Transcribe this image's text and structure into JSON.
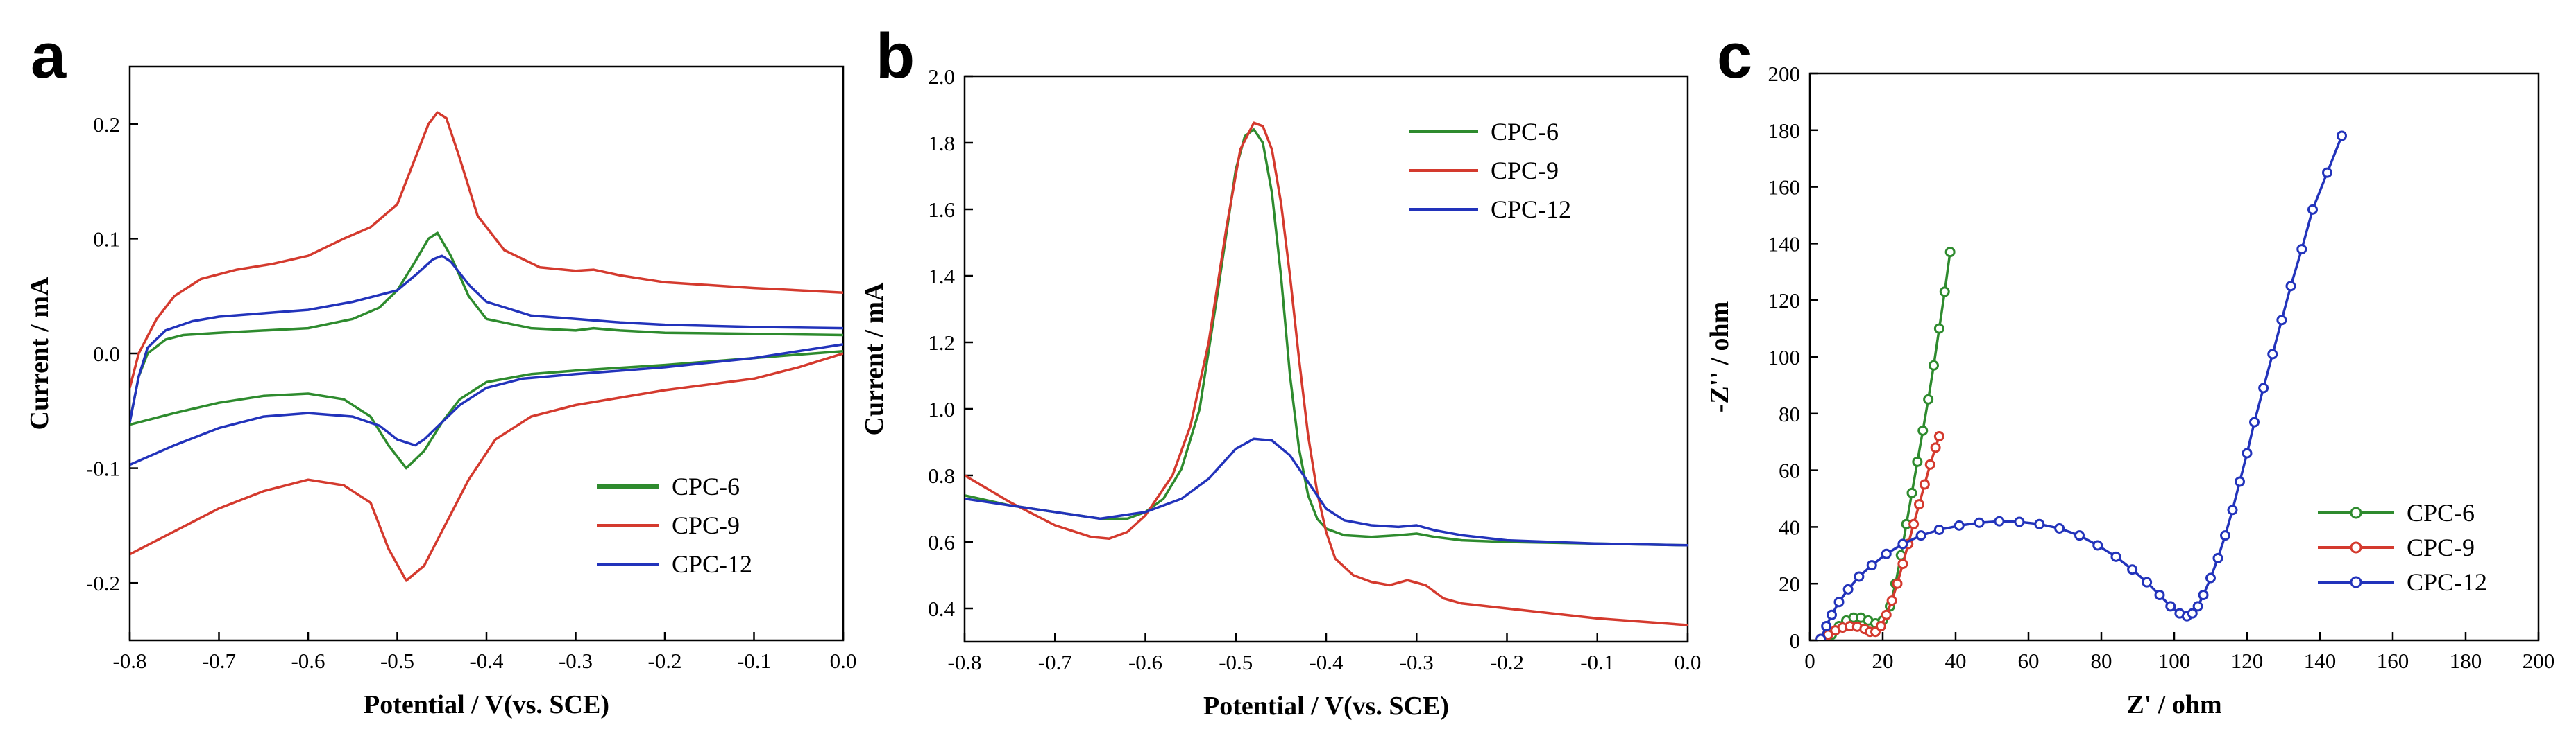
{
  "chart_data": [
    {
      "panel_label": "a",
      "type": "line",
      "title": "",
      "xlabel": "Potential / V(vs. SCE)",
      "ylabel": "Current / mA",
      "xlim": [
        -0.8,
        0.0
      ],
      "ylim": [
        -0.25,
        0.25
      ],
      "xticks": [
        -0.8,
        -0.7,
        -0.6,
        -0.5,
        -0.4,
        -0.3,
        -0.2,
        -0.1,
        0.0
      ],
      "xtick_labels": [
        "-0.8",
        "-0.7",
        "-0.6",
        "-0.5",
        "-0.4",
        "-0.3",
        "-0.2",
        "-0.1",
        "0.0"
      ],
      "yticks": [
        -0.2,
        -0.1,
        0.0,
        0.1,
        0.2
      ],
      "ytick_labels": [
        "-0.2",
        "-0.1",
        "0.0",
        "0.1",
        "0.2"
      ],
      "legend_position": "bottom-right",
      "series": [
        {
          "name": "CPC-6",
          "color": "#2e8b2e",
          "forward": {
            "x": [
              -0.8,
              -0.79,
              -0.78,
              -0.76,
              -0.74,
              -0.7,
              -0.65,
              -0.6,
              -0.55,
              -0.52,
              -0.5,
              -0.48,
              -0.465,
              -0.455,
              -0.44,
              -0.42,
              -0.4,
              -0.35,
              -0.3,
              -0.28,
              -0.25,
              -0.2,
              -0.1,
              0.0
            ],
            "y": [
              -0.06,
              -0.02,
              0.0,
              0.012,
              0.016,
              0.018,
              0.02,
              0.022,
              0.03,
              0.04,
              0.055,
              0.08,
              0.1,
              0.105,
              0.085,
              0.05,
              0.03,
              0.022,
              0.02,
              0.022,
              0.02,
              0.018,
              0.017,
              0.016
            ]
          },
          "reverse": {
            "x": [
              0.0,
              -0.1,
              -0.2,
              -0.3,
              -0.35,
              -0.4,
              -0.43,
              -0.45,
              -0.47,
              -0.49,
              -0.51,
              -0.53,
              -0.56,
              -0.6,
              -0.65,
              -0.7,
              -0.75,
              -0.8
            ],
            "y": [
              0.002,
              -0.004,
              -0.01,
              -0.015,
              -0.018,
              -0.025,
              -0.04,
              -0.06,
              -0.085,
              -0.1,
              -0.08,
              -0.055,
              -0.04,
              -0.035,
              -0.037,
              -0.043,
              -0.052,
              -0.062
            ]
          }
        },
        {
          "name": "CPC-9",
          "color": "#d43a2e",
          "forward": {
            "x": [
              -0.8,
              -0.79,
              -0.77,
              -0.75,
              -0.72,
              -0.68,
              -0.64,
              -0.6,
              -0.56,
              -0.53,
              -0.5,
              -0.48,
              -0.465,
              -0.455,
              -0.445,
              -0.43,
              -0.41,
              -0.38,
              -0.34,
              -0.3,
              -0.28,
              -0.25,
              -0.2,
              -0.1,
              0.0
            ],
            "y": [
              -0.03,
              0.0,
              0.03,
              0.05,
              0.065,
              0.073,
              0.078,
              0.085,
              0.1,
              0.11,
              0.13,
              0.17,
              0.2,
              0.21,
              0.205,
              0.17,
              0.12,
              0.09,
              0.075,
              0.072,
              0.073,
              0.068,
              0.062,
              0.057,
              0.053
            ]
          },
          "reverse": {
            "x": [
              0.0,
              -0.05,
              -0.1,
              -0.2,
              -0.3,
              -0.35,
              -0.39,
              -0.42,
              -0.45,
              -0.47,
              -0.49,
              -0.51,
              -0.53,
              -0.56,
              -0.6,
              -0.65,
              -0.7,
              -0.75,
              -0.8
            ],
            "y": [
              0.0,
              -0.012,
              -0.022,
              -0.032,
              -0.045,
              -0.055,
              -0.075,
              -0.11,
              -0.155,
              -0.185,
              -0.198,
              -0.17,
              -0.13,
              -0.115,
              -0.11,
              -0.12,
              -0.135,
              -0.155,
              -0.175
            ]
          }
        },
        {
          "name": "CPC-12",
          "color": "#2233bb",
          "forward": {
            "x": [
              -0.8,
              -0.79,
              -0.78,
              -0.76,
              -0.73,
              -0.7,
              -0.65,
              -0.6,
              -0.55,
              -0.5,
              -0.48,
              -0.46,
              -0.45,
              -0.44,
              -0.42,
              -0.4,
              -0.35,
              -0.3,
              -0.25,
              -0.2,
              -0.1,
              0.0
            ],
            "y": [
              -0.06,
              -0.02,
              0.005,
              0.02,
              0.028,
              0.032,
              0.035,
              0.038,
              0.045,
              0.055,
              0.068,
              0.082,
              0.085,
              0.08,
              0.06,
              0.045,
              0.033,
              0.03,
              0.027,
              0.025,
              0.023,
              0.022
            ]
          },
          "reverse": {
            "x": [
              0.0,
              -0.1,
              -0.2,
              -0.3,
              -0.36,
              -0.4,
              -0.43,
              -0.45,
              -0.47,
              -0.48,
              -0.5,
              -0.52,
              -0.55,
              -0.6,
              -0.65,
              -0.7,
              -0.75,
              -0.8
            ],
            "y": [
              0.008,
              -0.004,
              -0.012,
              -0.018,
              -0.022,
              -0.03,
              -0.045,
              -0.06,
              -0.075,
              -0.08,
              -0.075,
              -0.063,
              -0.055,
              -0.052,
              -0.055,
              -0.065,
              -0.08,
              -0.097
            ]
          }
        }
      ]
    },
    {
      "panel_label": "b",
      "type": "line",
      "title": "",
      "xlabel": "Potential / V(vs. SCE)",
      "ylabel": "Current / mA",
      "xlim": [
        -0.8,
        0.0
      ],
      "ylim": [
        0.3,
        2.0
      ],
      "xticks": [
        -0.8,
        -0.7,
        -0.6,
        -0.5,
        -0.4,
        -0.3,
        -0.2,
        -0.1,
        0.0
      ],
      "xtick_labels": [
        "-0.8",
        "-0.7",
        "-0.6",
        "-0.5",
        "-0.4",
        "-0.3",
        "-0.2",
        "-0.1",
        "0.0"
      ],
      "yticks": [
        0.4,
        0.6,
        0.8,
        1.0,
        1.2,
        1.4,
        1.6,
        1.8,
        2.0
      ],
      "ytick_labels": [
        "0.4",
        "0.6",
        "0.8",
        "1.0",
        "1.2",
        "1.4",
        "1.6",
        "1.8",
        "2.0"
      ],
      "legend_position": "top-right",
      "series": [
        {
          "name": "CPC-6",
          "color": "#2e8b2e",
          "x": [
            -0.8,
            -0.75,
            -0.7,
            -0.65,
            -0.62,
            -0.6,
            -0.58,
            -0.56,
            -0.54,
            -0.52,
            -0.5,
            -0.49,
            -0.48,
            -0.47,
            -0.46,
            -0.45,
            -0.44,
            -0.43,
            -0.42,
            -0.41,
            -0.4,
            -0.38,
            -0.35,
            -0.32,
            -0.3,
            -0.28,
            -0.25,
            -0.2,
            -0.1,
            0.0
          ],
          "y": [
            0.74,
            0.71,
            0.69,
            0.67,
            0.67,
            0.69,
            0.73,
            0.82,
            1.0,
            1.35,
            1.72,
            1.82,
            1.84,
            1.8,
            1.65,
            1.4,
            1.1,
            0.88,
            0.74,
            0.67,
            0.64,
            0.62,
            0.615,
            0.62,
            0.625,
            0.615,
            0.605,
            0.6,
            0.595,
            0.59
          ]
        },
        {
          "name": "CPC-9",
          "color": "#d43a2e",
          "x": [
            -0.8,
            -0.75,
            -0.7,
            -0.66,
            -0.64,
            -0.62,
            -0.6,
            -0.57,
            -0.55,
            -0.53,
            -0.51,
            -0.495,
            -0.48,
            -0.47,
            -0.46,
            -0.45,
            -0.44,
            -0.43,
            -0.42,
            -0.41,
            -0.4,
            -0.39,
            -0.37,
            -0.35,
            -0.33,
            -0.31,
            -0.29,
            -0.27,
            -0.25,
            -0.2,
            -0.1,
            0.0
          ],
          "y": [
            0.8,
            0.72,
            0.65,
            0.615,
            0.61,
            0.63,
            0.68,
            0.8,
            0.95,
            1.2,
            1.55,
            1.78,
            1.86,
            1.85,
            1.78,
            1.62,
            1.4,
            1.15,
            0.92,
            0.75,
            0.63,
            0.55,
            0.5,
            0.48,
            0.47,
            0.485,
            0.47,
            0.43,
            0.415,
            0.4,
            0.37,
            0.35
          ]
        },
        {
          "name": "CPC-12",
          "color": "#2233bb",
          "x": [
            -0.8,
            -0.75,
            -0.7,
            -0.65,
            -0.6,
            -0.56,
            -0.53,
            -0.5,
            -0.48,
            -0.46,
            -0.44,
            -0.42,
            -0.4,
            -0.38,
            -0.35,
            -0.32,
            -0.3,
            -0.28,
            -0.25,
            -0.2,
            -0.1,
            0.0
          ],
          "y": [
            0.73,
            0.71,
            0.69,
            0.67,
            0.69,
            0.73,
            0.79,
            0.88,
            0.91,
            0.905,
            0.86,
            0.78,
            0.7,
            0.665,
            0.65,
            0.645,
            0.65,
            0.635,
            0.62,
            0.605,
            0.595,
            0.59
          ]
        }
      ]
    },
    {
      "panel_label": "c",
      "type": "scatter",
      "title": "",
      "xlabel": "Z' / ohm",
      "ylabel": "-Z'' / ohm",
      "xlim": [
        0,
        200
      ],
      "ylim": [
        0,
        200
      ],
      "xticks": [
        0,
        20,
        40,
        60,
        80,
        100,
        120,
        140,
        160,
        180,
        200
      ],
      "xtick_labels": [
        "0",
        "20",
        "40",
        "60",
        "80",
        "100",
        "120",
        "140",
        "160",
        "180",
        "200"
      ],
      "yticks": [
        0,
        20,
        40,
        60,
        80,
        100,
        120,
        140,
        160,
        180,
        200
      ],
      "ytick_labels": [
        "0",
        "20",
        "40",
        "60",
        "80",
        "100",
        "120",
        "140",
        "160",
        "180",
        "200"
      ],
      "legend_position": "bottom-right",
      "series": [
        {
          "name": "CPC-6",
          "color": "#2e8b2e",
          "x": [
            6,
            8,
            10,
            12,
            14,
            16,
            18,
            20,
            22,
            23.5,
            25,
            26.5,
            28,
            29.5,
            31,
            32.5,
            34,
            35.5,
            37,
            38.5
          ],
          "y": [
            2,
            5,
            7,
            8,
            8,
            7,
            6,
            7,
            12,
            20,
            30,
            41,
            52,
            63,
            74,
            85,
            97,
            110,
            123,
            137
          ]
        },
        {
          "name": "CPC-9",
          "color": "#d43a2e",
          "x": [
            3,
            5,
            7,
            9,
            11,
            13,
            15,
            16.5,
            18,
            19.5,
            21,
            22.5,
            24,
            25.5,
            27,
            28.5,
            30,
            31.5,
            33,
            34.5,
            35.5
          ],
          "y": [
            0.5,
            2,
            3.5,
            4.5,
            5,
            4.8,
            4,
            3,
            3,
            5,
            9,
            14,
            20,
            27,
            34,
            41,
            48,
            55,
            62,
            68,
            72
          ]
        },
        {
          "name": "CPC-12",
          "color": "#2233bb",
          "x": [
            3,
            4.5,
            6,
            8,
            10.5,
            13.5,
            17,
            21,
            25.5,
            30.5,
            35.5,
            41,
            46.5,
            52,
            57.5,
            63,
            68.5,
            74,
            79,
            84,
            88.5,
            92.5,
            96,
            99,
            101.5,
            103.5,
            105,
            106.5,
            108,
            110,
            112,
            114,
            116,
            118,
            120,
            122,
            124.5,
            127,
            129.5,
            132,
            135,
            138,
            142,
            146
          ],
          "y": [
            0.5,
            5,
            9,
            13.5,
            18,
            22.5,
            26.5,
            30.5,
            34,
            37,
            39,
            40.5,
            41.5,
            42,
            41.8,
            41,
            39.5,
            37,
            33.5,
            29.5,
            25,
            20.5,
            16,
            12,
            9.5,
            8.5,
            9.5,
            12,
            16,
            22,
            29,
            37,
            46,
            56,
            66,
            77,
            89,
            101,
            113,
            125,
            138,
            152,
            165,
            178
          ]
        }
      ]
    }
  ]
}
